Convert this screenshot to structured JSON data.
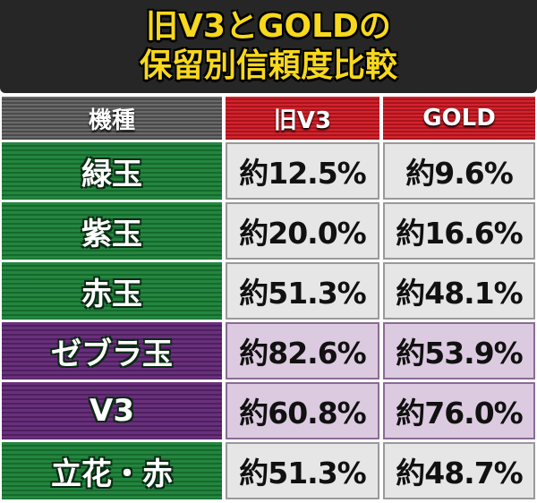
{
  "title": [
    "旧V3とGOLDの",
    "保留別信頼度比較"
  ],
  "table": {
    "header": [
      "機種",
      "旧V3",
      "GOLD"
    ],
    "rows": [
      [
        "緑玉",
        "約12.5%",
        "約9.6%"
      ],
      [
        "紫玉",
        "約20.0%",
        "約16.6%"
      ],
      [
        "赤玉",
        "約51.3%",
        "約48.1%"
      ],
      [
        "ゼブラ玉",
        "約82.6%",
        "約53.9%"
      ],
      [
        "V3",
        "約60.8%",
        "約76.0%"
      ],
      [
        "立花・赤",
        "約51.3%",
        "約48.7%"
      ]
    ]
  }
}
